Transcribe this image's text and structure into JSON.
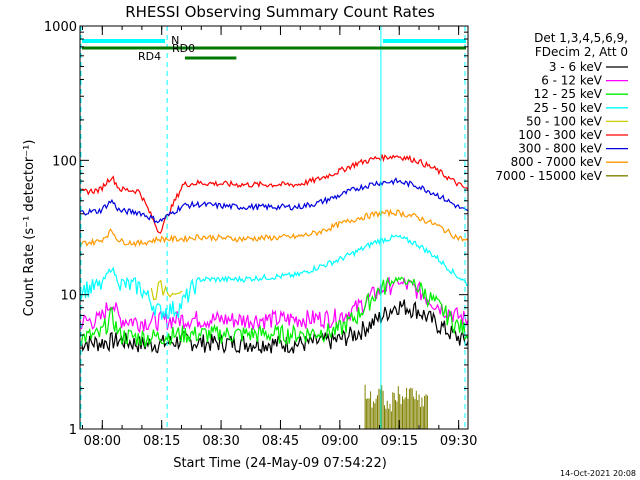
{
  "chart_data": {
    "type": "line",
    "title": "RHESSI Observing Summary Count Rates",
    "xlabel": "Start Time (24-May-09 07:54:22)",
    "ylabel": "Count Rate (s⁻¹ detector⁻¹)",
    "yscale": "log",
    "ylim": [
      1,
      1000
    ],
    "xlim_minutes_after_0754": [
      0,
      98
    ],
    "x_ticks": [
      "08:00",
      "08:15",
      "08:30",
      "08:45",
      "09:00",
      "09:15",
      "09:30"
    ],
    "y_ticks": [
      "1",
      "10",
      "100",
      "1000"
    ],
    "legend_header": [
      "Det 1,3,4,5,6,9,",
      "FDecim 2, Att 0"
    ],
    "series": [
      {
        "name": "3 - 6 keV",
        "color": "#000000",
        "x": [
          0,
          5,
          10,
          15,
          18,
          22,
          26,
          30,
          40,
          55,
          65,
          70,
          75,
          80,
          85,
          90,
          95,
          98
        ],
        "y": [
          4.4,
          4.4,
          4.6,
          4.3,
          4.3,
          4.4,
          4.6,
          4.4,
          4.4,
          4.3,
          4.6,
          5.2,
          6.5,
          8.4,
          7.8,
          6.1,
          4.9,
          4.4
        ]
      },
      {
        "name": "6 - 12 keV",
        "color": "#ff00ff",
        "x": [
          0,
          5,
          8,
          10,
          15,
          20,
          25,
          30,
          40,
          55,
          65,
          70,
          75,
          80,
          85,
          90,
          95,
          98
        ],
        "y": [
          6.3,
          6.5,
          9.0,
          6.6,
          6.3,
          6.4,
          6.6,
          6.6,
          6.5,
          6.6,
          6.8,
          8.0,
          10.5,
          12.5,
          11.0,
          8.5,
          7.0,
          6.5
        ]
      },
      {
        "name": "12 - 25 keV",
        "color": "#00ee00",
        "x": [
          0,
          5,
          8,
          10,
          15,
          20,
          25,
          30,
          40,
          55,
          65,
          70,
          75,
          80,
          85,
          90,
          95,
          98
        ],
        "y": [
          4.8,
          5.0,
          7.0,
          5.0,
          4.8,
          4.9,
          5.1,
          5.1,
          5.1,
          5.1,
          5.4,
          7.0,
          10.5,
          13.2,
          11.8,
          8.5,
          6.0,
          5.3
        ]
      },
      {
        "name": "25 - 50 keV",
        "color": "#00ffff",
        "x": [
          0,
          5,
          8,
          10,
          15,
          20,
          25,
          30,
          40,
          55,
          60,
          65,
          70,
          75,
          80,
          85,
          90,
          95,
          98
        ],
        "y": [
          11,
          11.5,
          16,
          12,
          11.5,
          7.5,
          8.0,
          13,
          13,
          14,
          16,
          18,
          21,
          25,
          27,
          24,
          19,
          14,
          12
        ]
      },
      {
        "name": "50 - 100 keV",
        "color": "#cccc00",
        "x": [
          18,
          20,
          22,
          26
        ],
        "y": [
          10.5,
          11.0,
          11.2,
          11.5
        ]
      },
      {
        "name": "100 - 300 keV",
        "color": "#ff0000",
        "x": [
          0,
          5,
          8,
          10,
          15,
          20,
          26,
          30,
          40,
          55,
          60,
          65,
          70,
          75,
          80,
          85,
          90,
          95,
          98
        ],
        "y": [
          58,
          60,
          76,
          61,
          59,
          29,
          66,
          68,
          66,
          66,
          72,
          82,
          95,
          104,
          108,
          100,
          85,
          68,
          60
        ]
      },
      {
        "name": "300 - 800 keV",
        "color": "#0000dd",
        "x": [
          0,
          5,
          8,
          10,
          15,
          20,
          26,
          30,
          40,
          55,
          60,
          65,
          70,
          75,
          80,
          85,
          90,
          95,
          98
        ],
        "y": [
          41,
          42,
          50,
          42,
          41,
          35,
          46,
          47,
          45,
          45,
          48,
          54,
          62,
          68,
          70,
          65,
          56,
          46,
          41
        ]
      },
      {
        "name": "800 - 7000 keV",
        "color": "#ff9900",
        "x": [
          0,
          5,
          8,
          10,
          15,
          20,
          26,
          30,
          40,
          55,
          60,
          65,
          70,
          75,
          80,
          85,
          90,
          95,
          98
        ],
        "y": [
          24,
          25,
          30,
          25,
          24,
          26,
          26,
          27,
          26,
          27,
          29,
          33,
          37,
          40,
          41,
          38,
          33,
          27,
          25
        ]
      },
      {
        "name": "7000 - 15000 keV",
        "color": "#808000",
        "x": [
          72,
          74,
          76,
          78,
          80,
          82,
          84,
          86,
          88
        ],
        "y": [
          1.9,
          1.6,
          1.9,
          1.4,
          1.9,
          1.7,
          1.9,
          1.5,
          1.9
        ]
      }
    ],
    "markers": [
      {
        "label": "N",
        "color": "#00ffff",
        "x_range": [
          0,
          22
        ],
        "y": 870
      },
      {
        "label": "N",
        "color": "#00ffff",
        "x_range": [
          76,
          98
        ],
        "y": 870
      },
      {
        "label": "RD0",
        "color": "#007700",
        "x_range": [
          0,
          98
        ],
        "y": 770
      },
      {
        "label": "RD4",
        "color": "#007700",
        "x_range": [
          26,
          40
        ],
        "y": 610
      }
    ],
    "vertical_lines": [
      {
        "x": 0,
        "style": "dashed",
        "color": "#00ffff"
      },
      {
        "x": 22,
        "style": "dashed",
        "color": "#00ffff"
      },
      {
        "x": 76,
        "style": "solid",
        "color": "#00ffff"
      },
      {
        "x": 98,
        "style": "dashed",
        "color": "#00ffff"
      }
    ],
    "grid": false,
    "legend_position": "right"
  },
  "footer": {
    "date": "14-Oct-2021 20:08"
  }
}
